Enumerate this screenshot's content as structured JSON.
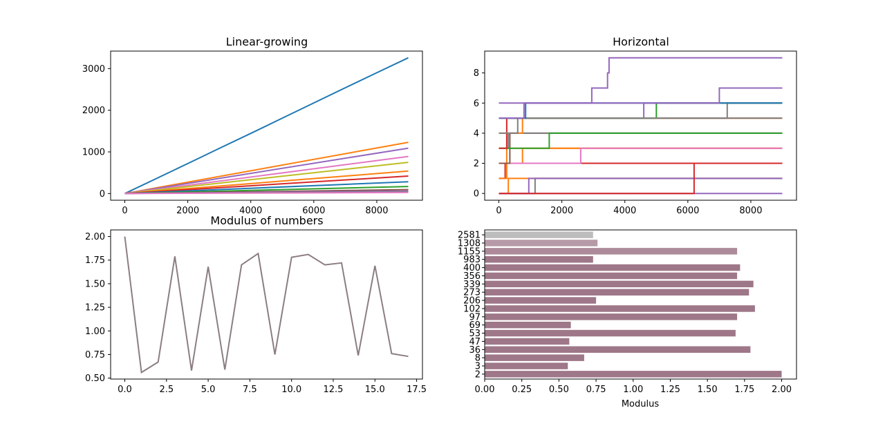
{
  "chart_data": [
    {
      "type": "line",
      "title": "Linear-growing",
      "xlabel": "",
      "ylabel": "",
      "xlim": [
        -450,
        9450
      ],
      "ylim": [
        -160,
        3420
      ],
      "xticks": [
        0,
        2000,
        4000,
        6000,
        8000
      ],
      "yticks": [
        0,
        1000,
        2000,
        3000
      ],
      "grid": false,
      "series": [
        {
          "color": "#1f77b4",
          "x": [
            0,
            1000,
            2000,
            3000,
            4000,
            5000,
            6000,
            7000,
            8000,
            9000
          ],
          "y": [
            0,
            360,
            720,
            1085,
            1445,
            1810,
            2175,
            2540,
            2900,
            3260
          ]
        },
        {
          "color": "#ff7f0e",
          "x": [
            0,
            9000
          ],
          "y": [
            0,
            1230
          ]
        },
        {
          "color": "#9467bd",
          "x": [
            0,
            9000
          ],
          "y": [
            0,
            1090
          ]
        },
        {
          "color": "#e377c2",
          "x": [
            0,
            9000
          ],
          "y": [
            0,
            890
          ]
        },
        {
          "color": "#bcbd22",
          "x": [
            0,
            9000
          ],
          "y": [
            0,
            750
          ]
        },
        {
          "color": "#ff7f0e",
          "x": [
            0,
            9000
          ],
          "y": [
            0,
            540
          ]
        },
        {
          "color": "#d62728",
          "x": [
            0,
            9000
          ],
          "y": [
            0,
            420
          ]
        },
        {
          "color": "#1f77b4",
          "x": [
            0,
            9000
          ],
          "y": [
            0,
            285
          ]
        },
        {
          "color": "#2ca02c",
          "x": [
            0,
            9000
          ],
          "y": [
            0,
            170
          ]
        },
        {
          "color": "#8c564b",
          "x": [
            0,
            9000
          ],
          "y": [
            0,
            95
          ]
        },
        {
          "color": "#9467bd",
          "x": [
            0,
            9000
          ],
          "y": [
            0,
            60
          ]
        },
        {
          "color": "#7f7f7f",
          "x": [
            0,
            9000
          ],
          "y": [
            0,
            40
          ]
        },
        {
          "color": "#e377c2",
          "x": [
            0,
            9000
          ],
          "y": [
            0,
            25
          ]
        }
      ]
    },
    {
      "type": "line",
      "title": "Horizontal",
      "xlabel": "",
      "ylabel": "",
      "xlim": [
        -450,
        9450
      ],
      "ylim": [
        -0.45,
        9.45
      ],
      "xticks": [
        0,
        2000,
        4000,
        6000,
        8000
      ],
      "yticks": [
        0,
        2,
        4,
        6,
        8
      ],
      "grid": false,
      "series": [
        {
          "color": "#9467bd",
          "x": [
            0,
            9000
          ],
          "y": [
            0,
            0
          ]
        },
        {
          "color": "#ff7f0e",
          "x": [
            0,
            300,
            300,
            9000
          ],
          "y": [
            0,
            0,
            1,
            1
          ]
        },
        {
          "color": "#7f7f7f",
          "x": [
            0,
            1150,
            1150,
            9000
          ],
          "y": [
            0,
            0,
            1,
            1
          ]
        },
        {
          "color": "#9467bd",
          "x": [
            0,
            950,
            950,
            9000
          ],
          "y": [
            0,
            0,
            1,
            1
          ]
        },
        {
          "color": "#d62728",
          "x": [
            0,
            200,
            200,
            9000
          ],
          "y": [
            1,
            1,
            2,
            2
          ]
        },
        {
          "color": "#d62728",
          "x": [
            0,
            6200,
            6200,
            9000
          ],
          "y": [
            0,
            0,
            2,
            2
          ]
        },
        {
          "color": "#ff7f0e",
          "x": [
            0,
            250,
            250,
            9000
          ],
          "y": [
            1,
            1,
            3,
            3
          ]
        },
        {
          "color": "#ff7f0e",
          "x": [
            0,
            750,
            750,
            9000
          ],
          "y": [
            2,
            2,
            3,
            3
          ]
        },
        {
          "color": "#e377c2",
          "x": [
            0,
            2600,
            2600,
            9000
          ],
          "y": [
            2,
            2,
            3,
            3
          ]
        },
        {
          "color": "#8c564b",
          "x": [
            0,
            350,
            350,
            9000
          ],
          "y": [
            2,
            2,
            4,
            4
          ]
        },
        {
          "color": "#7f7f7f",
          "x": [
            0,
            300,
            300,
            9000
          ],
          "y": [
            3,
            3,
            4,
            4
          ]
        },
        {
          "color": "#2ca02c",
          "x": [
            0,
            1600,
            1600,
            9000
          ],
          "y": [
            3,
            3,
            4,
            4
          ]
        },
        {
          "color": "#d62728",
          "x": [
            0,
            250,
            250,
            9000
          ],
          "y": [
            3,
            3,
            5,
            5
          ]
        },
        {
          "color": "#ff7f0e",
          "x": [
            0,
            750,
            750,
            9000
          ],
          "y": [
            4,
            4,
            5,
            5
          ]
        },
        {
          "color": "#7f7f7f",
          "x": [
            0,
            600,
            600,
            9000
          ],
          "y": [
            4,
            4,
            5,
            5
          ]
        },
        {
          "color": "#9467bd",
          "x": [
            0,
            4600,
            4600,
            9000
          ],
          "y": [
            5,
            5,
            6,
            6
          ]
        },
        {
          "color": "#2ca02c",
          "x": [
            0,
            5000,
            5000,
            9000
          ],
          "y": [
            5,
            5,
            6,
            6
          ]
        },
        {
          "color": "#7f7f7f",
          "x": [
            0,
            7250,
            7250,
            9000
          ],
          "y": [
            5,
            5,
            6,
            6
          ]
        },
        {
          "color": "#1f77b4",
          "x": [
            0,
            850,
            850,
            9000
          ],
          "y": [
            5,
            5,
            6,
            6
          ]
        },
        {
          "color": "#9467bd",
          "x": [
            0,
            800,
            800,
            2950,
            2950,
            3450,
            3450,
            3500,
            3500,
            9000
          ],
          "y": [
            5,
            5,
            6,
            6,
            7,
            7,
            8,
            8,
            9,
            9
          ]
        },
        {
          "color": "#9467bd",
          "x": [
            0,
            7000,
            7000,
            9000
          ],
          "y": [
            6,
            6,
            7,
            7
          ]
        }
      ]
    },
    {
      "type": "line",
      "title": "Modulus of numbers",
      "xlabel": "",
      "ylabel": "",
      "xlim": [
        -0.85,
        17.85
      ],
      "ylim": [
        0.49,
        2.07
      ],
      "xticks": [
        "0.0",
        "2.5",
        "5.0",
        "7.5",
        "10.0",
        "12.5",
        "15.0",
        "17.5"
      ],
      "yticks": [
        "0.50",
        "0.75",
        "1.00",
        "1.25",
        "1.50",
        "1.75",
        "2.00"
      ],
      "grid": false,
      "series": [
        {
          "color": "#8b7d82",
          "x": [
            0,
            1,
            2,
            3,
            4,
            5,
            6,
            7,
            8,
            9,
            10,
            11,
            12,
            13,
            14,
            15,
            16,
            17
          ],
          "y": [
            2.0,
            0.56,
            0.67,
            1.79,
            0.58,
            1.68,
            0.59,
            1.7,
            1.82,
            0.75,
            1.78,
            1.81,
            1.7,
            1.72,
            0.74,
            1.69,
            0.76,
            0.73
          ]
        }
      ]
    },
    {
      "type": "bar",
      "orientation": "horizontal",
      "title": "",
      "xlabel": "Modulus",
      "ylabel": "",
      "xlim": [
        0,
        2.1
      ],
      "xticks": [
        "0.00",
        "0.25",
        "0.50",
        "0.75",
        "1.00",
        "1.25",
        "1.50",
        "1.75",
        "2.00"
      ],
      "grid": false,
      "categories": [
        "2",
        "3",
        "8",
        "36",
        "47",
        "53",
        "69",
        "97",
        "102",
        "206",
        "273",
        "339",
        "356",
        "400",
        "983",
        "1155",
        "1308",
        "2581"
      ],
      "values": [
        2.0,
        0.56,
        0.67,
        1.79,
        0.57,
        1.69,
        0.58,
        1.7,
        1.82,
        0.75,
        1.78,
        1.81,
        1.7,
        1.72,
        0.73,
        1.7,
        0.76,
        0.73
      ],
      "colors": [
        "#9e7788",
        "#9e7788",
        "#9e7788",
        "#9e7788",
        "#9e7788",
        "#9e7788",
        "#9e7788",
        "#9e7788",
        "#9e7788",
        "#9e7788",
        "#9e7788",
        "#9e7788",
        "#9e7788",
        "#9e7788",
        "#9e7788",
        "#ad8a9a",
        "#b79aa8",
        "#bdbdbd"
      ]
    }
  ]
}
